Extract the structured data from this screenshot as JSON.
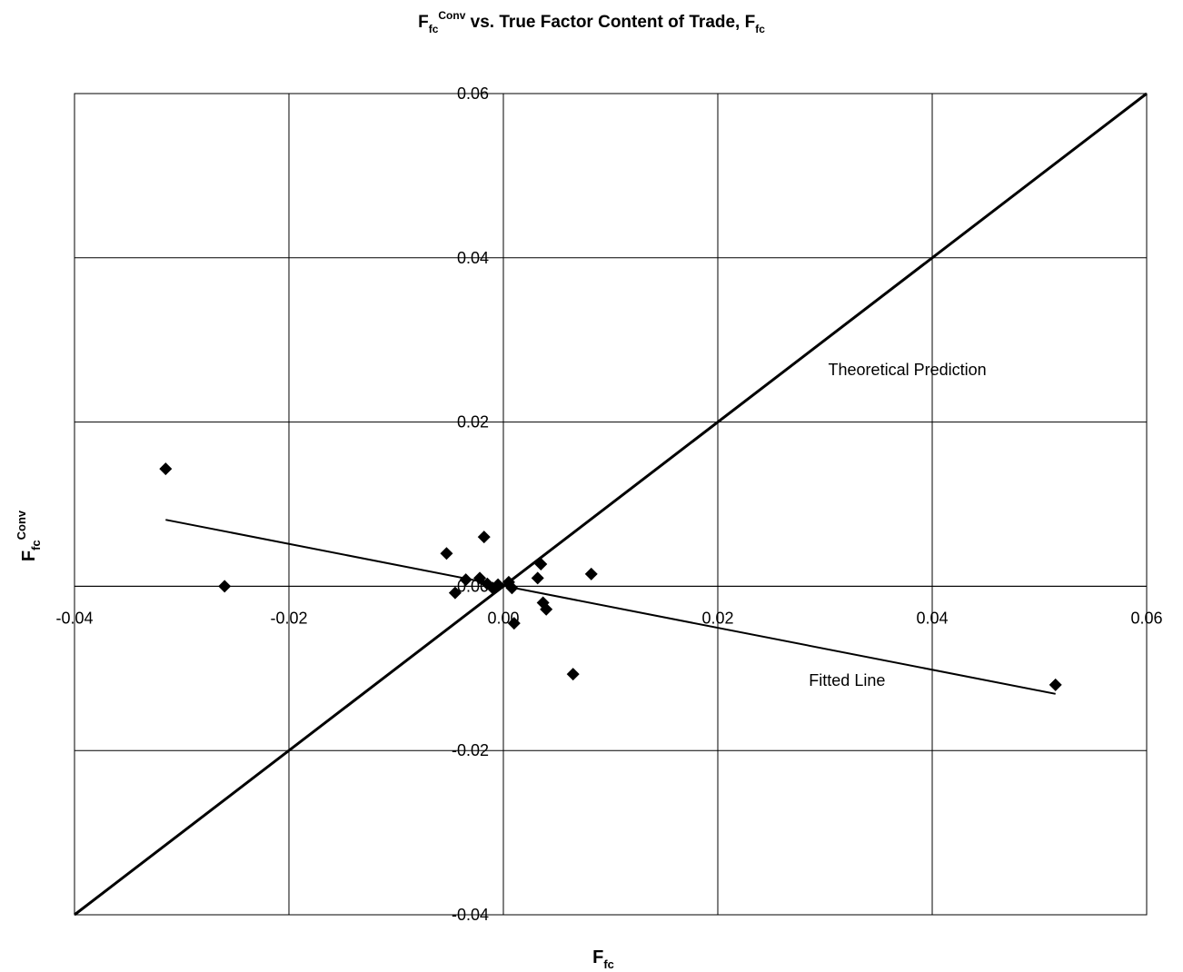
{
  "chart_data": {
    "type": "scatter",
    "title": {
      "main": "F",
      "main_sub": "fc",
      "main_sup": "Conv",
      "rest": " vs. True Factor Content of Trade, F",
      "rest_sub": "fc"
    },
    "xlabel": {
      "main": "F",
      "sub": "fc"
    },
    "ylabel": {
      "main": "F",
      "sub": "fc",
      "sup": "Conv"
    },
    "xlim": [
      -0.04,
      0.06
    ],
    "ylim": [
      -0.04,
      0.06
    ],
    "x_ticks": [
      -0.04,
      -0.02,
      0.0,
      0.02,
      0.04,
      0.06
    ],
    "y_ticks": [
      -0.04,
      -0.02,
      0.0,
      0.02,
      0.04,
      0.06
    ],
    "x_tick_labels": [
      "-0.04",
      "-0.02",
      "0.00",
      "0.02",
      "0.04",
      "0.06"
    ],
    "y_tick_labels": [
      "-0.04",
      "-0.02",
      "0.00",
      "0.02",
      "0.04",
      "0.06"
    ],
    "grid": true,
    "marker": "diamond",
    "points": [
      {
        "x": -0.0315,
        "y": 0.0143
      },
      {
        "x": -0.026,
        "y": 0.0
      },
      {
        "x": -0.0053,
        "y": 0.004
      },
      {
        "x": -0.0045,
        "y": -0.0008
      },
      {
        "x": -0.0035,
        "y": 0.0008
      },
      {
        "x": -0.0022,
        "y": 0.001
      },
      {
        "x": -0.0018,
        "y": 0.006
      },
      {
        "x": -0.0015,
        "y": 0.0003
      },
      {
        "x": -0.001,
        "y": -0.0002
      },
      {
        "x": -0.0005,
        "y": 0.0002
      },
      {
        "x": 0.0005,
        "y": 0.0005
      },
      {
        "x": 0.0008,
        "y": -0.0002
      },
      {
        "x": 0.001,
        "y": -0.0045
      },
      {
        "x": 0.0032,
        "y": 0.001
      },
      {
        "x": 0.0035,
        "y": 0.0027
      },
      {
        "x": 0.0037,
        "y": -0.002
      },
      {
        "x": 0.004,
        "y": -0.0028
      },
      {
        "x": 0.0065,
        "y": -0.0107
      },
      {
        "x": 0.0082,
        "y": 0.0015
      },
      {
        "x": 0.0515,
        "y": -0.012
      }
    ],
    "lines": [
      {
        "name": "Theoretical Prediction",
        "x": [
          -0.04,
          0.06
        ],
        "y": [
          -0.04,
          0.06
        ],
        "stroke": "#000000",
        "width": 3
      },
      {
        "name": "Fitted Line",
        "x": [
          -0.0315,
          0.0515
        ],
        "y": [
          0.0081,
          -0.0131
        ],
        "stroke": "#000000",
        "width": 2
      }
    ],
    "annotations": [
      {
        "text": "Theoretical Prediction",
        "x": 0.0303,
        "y": 0.0257
      },
      {
        "text": "Fitted Line",
        "x": 0.0285,
        "y": -0.0121
      }
    ],
    "colors": {
      "axis": "#000000",
      "grid": "#000000",
      "marker": "#000000"
    }
  }
}
